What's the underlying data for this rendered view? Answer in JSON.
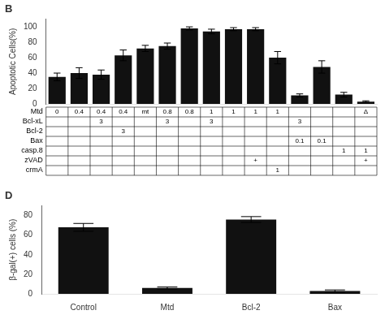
{
  "chart_data": [
    {
      "type": "bar",
      "title": "B",
      "categories": [
        null,
        null,
        null,
        null,
        null,
        null,
        null,
        null,
        null,
        null,
        null,
        null,
        null,
        null,
        null
      ],
      "values": [
        35,
        40,
        38,
        63,
        72,
        75,
        98,
        94,
        97,
        97,
        60,
        11,
        48,
        12,
        3
      ],
      "errors": [
        5,
        7,
        6,
        7,
        4,
        4,
        2,
        3,
        2,
        2,
        8,
        2,
        8,
        3,
        1
      ],
      "color": "#111111",
      "ylabel": "Apoptotic Cells(%)",
      "ylim": [
        0,
        110
      ],
      "yticks": [
        0,
        20,
        40,
        60,
        80,
        100
      ],
      "grid": false,
      "tick_labels": "y",
      "table": {
        "rows": [
          "Mtd",
          "Bcl-xL",
          "Bcl-2",
          "Bax",
          "casp.8",
          "zVAD",
          "crmA"
        ],
        "cells": [
          [
            "0",
            "0.4",
            "0.4",
            "0.4",
            "mt",
            "0.8",
            "0.8",
            "1",
            "1",
            "1",
            "1",
            null,
            null,
            null,
            "Δ"
          ],
          [
            null,
            null,
            "3",
            null,
            null,
            "3",
            null,
            "3",
            null,
            null,
            null,
            "3",
            null,
            null,
            null
          ],
          [
            null,
            null,
            null,
            "3",
            null,
            null,
            null,
            null,
            null,
            null,
            null,
            null,
            null,
            null,
            null
          ],
          [
            null,
            null,
            null,
            null,
            null,
            null,
            null,
            null,
            null,
            null,
            null,
            "0.1",
            "0.1",
            null,
            null
          ],
          [
            null,
            null,
            null,
            null,
            null,
            null,
            null,
            null,
            null,
            null,
            null,
            null,
            null,
            "1",
            "1"
          ],
          [
            null,
            null,
            null,
            null,
            null,
            null,
            null,
            null,
            null,
            "+",
            null,
            null,
            null,
            null,
            "+"
          ],
          [
            null,
            null,
            null,
            null,
            null,
            null,
            null,
            null,
            null,
            null,
            "1",
            null,
            null,
            null,
            null
          ]
        ]
      }
    },
    {
      "type": "bar",
      "title": "D",
      "categories": [
        "Control",
        "Mtd",
        "Bcl-2",
        "Bax"
      ],
      "values": [
        68,
        6,
        76,
        3
      ],
      "errors": [
        4,
        1,
        3,
        1
      ],
      "color": "#111111",
      "ylabel": "β-gal(+) cells (%)",
      "ylim": [
        0,
        90
      ],
      "yticks": [
        0,
        20,
        40,
        60,
        80
      ],
      "grid": false
    }
  ]
}
